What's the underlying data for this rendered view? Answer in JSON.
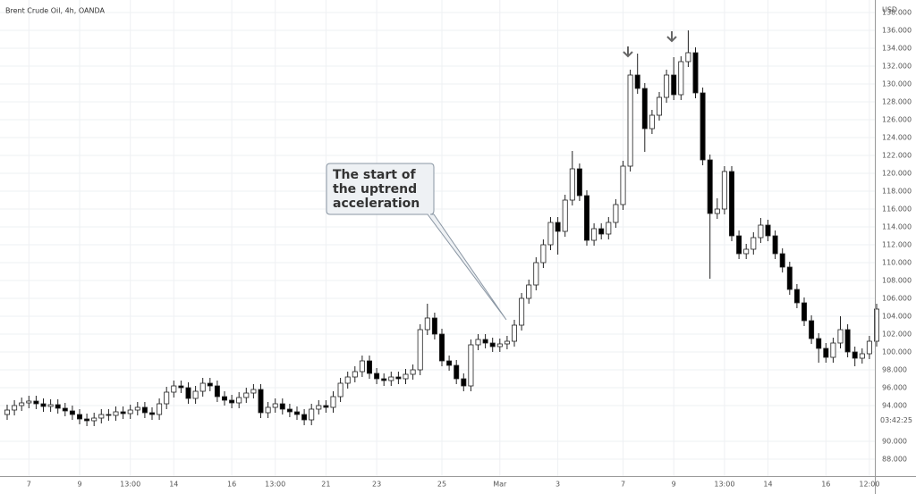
{
  "chart_data": {
    "type": "candlestick",
    "title": "Brent Crude Oil, 4h, OANDA",
    "y_axis_label": "USD",
    "countdown": "03:42:25",
    "annotation": [
      "The start of",
      "the uptrend",
      "acceleration"
    ],
    "up_color": "#ffffff",
    "down_color": "#000000",
    "outline_color": "#222222",
    "grid": true,
    "ylim": [
      86.1,
      139.4
    ],
    "yticks": [
      {
        "value": 88,
        "label": "88.000"
      },
      {
        "value": 90,
        "label": "90.000"
      },
      {
        "value": 94,
        "label": "94.000"
      },
      {
        "value": 96,
        "label": "96.000"
      },
      {
        "value": 98,
        "label": "98.000"
      },
      {
        "value": 100,
        "label": "100.000"
      },
      {
        "value": 102,
        "label": "102.000"
      },
      {
        "value": 104,
        "label": "104.000"
      },
      {
        "value": 106,
        "label": "106.000"
      },
      {
        "value": 108,
        "label": "108.000"
      },
      {
        "value": 110,
        "label": "110.000"
      },
      {
        "value": 112,
        "label": "112.000"
      },
      {
        "value": 114,
        "label": "114.000"
      },
      {
        "value": 116,
        "label": "116.000"
      },
      {
        "value": 118,
        "label": "118.000"
      },
      {
        "value": 120,
        "label": "120.000"
      },
      {
        "value": 122,
        "label": "122.000"
      },
      {
        "value": 124,
        "label": "124.000"
      },
      {
        "value": 126,
        "label": "126.000"
      },
      {
        "value": 128,
        "label": "128.000"
      },
      {
        "value": 130,
        "label": "130.000"
      },
      {
        "value": 132,
        "label": "132.000"
      },
      {
        "value": 134,
        "label": "134.000"
      },
      {
        "value": 136,
        "label": "136.000"
      },
      {
        "value": 138,
        "label": "138.000"
      }
    ],
    "categories": [
      null,
      null,
      null,
      "7",
      null,
      null,
      null,
      null,
      null,
      null,
      "9",
      null,
      null,
      null,
      null,
      null,
      null,
      "13:00",
      null,
      null,
      null,
      null,
      null,
      "14",
      null,
      null,
      null,
      null,
      null,
      null,
      null,
      "16",
      null,
      null,
      null,
      null,
      null,
      "13:00",
      null,
      null,
      null,
      null,
      null,
      null,
      "21",
      null,
      null,
      null,
      null,
      null,
      null,
      "23",
      null,
      null,
      null,
      null,
      null,
      null,
      null,
      null,
      "25",
      null,
      null,
      null,
      null,
      null,
      null,
      null,
      "Mar",
      null,
      null,
      null,
      null,
      null,
      null,
      null,
      "3",
      null,
      null,
      null,
      null,
      null,
      null,
      null,
      null,
      "7",
      null,
      null,
      null,
      null,
      null,
      null,
      "9",
      null,
      null,
      null,
      null,
      null,
      null,
      "13:00",
      null,
      null,
      null,
      null,
      null,
      "14",
      null,
      null,
      null,
      null,
      null,
      null,
      null,
      "16",
      null,
      null,
      null,
      null,
      null,
      "12:00",
      null
    ],
    "open": [
      93.0,
      93.5,
      94.0,
      94.3,
      94.5,
      94.2,
      93.9,
      94.1,
      93.7,
      93.4,
      93.0,
      92.5,
      92.3,
      92.6,
      93.0,
      92.9,
      93.3,
      93.1,
      93.5,
      93.8,
      93.2,
      93.0,
      94.2,
      95.5,
      96.2,
      96.0,
      94.8,
      95.6,
      96.5,
      96.2,
      95.0,
      94.6,
      94.3,
      94.9,
      95.4,
      95.8,
      93.2,
      93.8,
      94.2,
      93.6,
      93.3,
      93.0,
      92.4,
      93.6,
      94.0,
      93.8,
      95.0,
      96.5,
      97.2,
      97.8,
      99.0,
      97.6,
      97.0,
      96.8,
      97.2,
      97.0,
      97.5,
      98.0,
      102.5,
      103.8,
      102.0,
      99.0,
      98.5,
      97.0,
      96.2,
      100.8,
      101.4,
      101.0,
      100.6,
      100.9,
      101.2,
      103.0,
      106.0,
      107.5,
      110.0,
      112.0,
      114.5,
      113.5,
      117.0,
      120.5,
      117.5,
      112.5,
      113.8,
      113.2,
      114.5,
      116.5,
      120.8,
      131.0,
      129.5,
      125.0,
      126.5,
      128.5,
      131.0,
      128.8,
      132.5,
      133.5,
      129.0,
      121.5,
      115.5,
      116.0,
      120.2,
      113.0,
      111.0,
      111.5,
      112.8,
      114.2,
      113.0,
      111.0,
      109.5,
      107.0,
      105.5,
      103.5,
      101.5,
      100.4,
      99.4,
      101.0,
      102.5,
      100.0,
      99.3,
      99.8,
      101.2
    ],
    "high": [
      94.1,
      94.6,
      94.9,
      95.1,
      95.1,
      94.8,
      94.7,
      94.7,
      94.3,
      94.0,
      93.6,
      93.1,
      93.2,
      93.6,
      93.6,
      93.9,
      93.9,
      94.1,
      94.4,
      94.4,
      93.8,
      94.8,
      96.1,
      96.8,
      96.8,
      96.6,
      96.2,
      97.1,
      97.1,
      96.8,
      95.6,
      95.2,
      95.5,
      96.0,
      96.4,
      96.4,
      94.4,
      94.8,
      94.8,
      94.2,
      93.9,
      93.6,
      94.2,
      94.6,
      94.6,
      95.6,
      97.1,
      97.8,
      98.4,
      99.6,
      99.6,
      98.2,
      97.6,
      97.8,
      97.8,
      98.1,
      98.6,
      103.1,
      105.4,
      104.4,
      102.6,
      99.6,
      99.1,
      97.6,
      101.4,
      102.0,
      102.0,
      101.6,
      101.5,
      101.8,
      103.6,
      106.6,
      108.1,
      110.6,
      112.6,
      115.1,
      115.1,
      117.6,
      122.5,
      121.1,
      118.1,
      114.4,
      114.4,
      115.1,
      117.1,
      121.4,
      131.6,
      133.4,
      130.1,
      127.1,
      129.1,
      131.6,
      133.0,
      133.1,
      136.0,
      134.1,
      129.6,
      122.1,
      117.2,
      120.8,
      120.8,
      113.6,
      112.1,
      113.4,
      115.0,
      114.8,
      113.6,
      111.6,
      110.1,
      107.6,
      106.1,
      104.1,
      102.1,
      101.0,
      101.6,
      104.0,
      103.1,
      100.6,
      100.4,
      101.8,
      105.4
    ],
    "low": [
      92.4,
      92.9,
      93.4,
      93.7,
      93.6,
      93.3,
      93.3,
      93.1,
      92.8,
      92.4,
      91.9,
      91.7,
      91.7,
      92.0,
      92.3,
      92.3,
      92.5,
      92.5,
      92.9,
      92.6,
      92.4,
      92.4,
      93.6,
      94.9,
      95.4,
      94.2,
      94.2,
      95.0,
      95.6,
      94.4,
      94.0,
      93.7,
      93.7,
      94.3,
      94.8,
      92.6,
      92.6,
      93.2,
      93.0,
      92.7,
      92.4,
      91.8,
      91.8,
      93.0,
      93.2,
      93.2,
      94.4,
      95.9,
      96.6,
      97.2,
      97.0,
      96.4,
      96.2,
      96.2,
      96.4,
      96.4,
      96.9,
      97.4,
      101.9,
      101.4,
      98.4,
      97.9,
      96.4,
      95.6,
      95.6,
      100.2,
      100.4,
      100.0,
      100.0,
      100.3,
      100.6,
      102.4,
      105.4,
      106.9,
      109.4,
      111.4,
      110.9,
      112.9,
      116.4,
      116.9,
      111.9,
      111.9,
      112.6,
      112.6,
      113.9,
      115.9,
      120.2,
      128.9,
      122.4,
      124.4,
      125.9,
      127.9,
      128.2,
      128.2,
      131.9,
      128.4,
      120.9,
      108.2,
      114.9,
      115.4,
      112.4,
      110.4,
      110.4,
      110.9,
      112.2,
      112.4,
      110.4,
      108.9,
      106.4,
      104.9,
      102.9,
      100.9,
      98.8,
      98.8,
      98.8,
      100.4,
      99.4,
      98.4,
      98.7,
      99.2,
      100.6
    ],
    "close": [
      93.5,
      94.0,
      94.3,
      94.5,
      94.2,
      93.9,
      94.1,
      93.7,
      93.4,
      93.0,
      92.5,
      92.3,
      92.6,
      93.0,
      92.9,
      93.3,
      93.1,
      93.5,
      93.8,
      93.2,
      93.0,
      94.2,
      95.5,
      96.2,
      96.0,
      94.8,
      95.6,
      96.5,
      96.2,
      95.0,
      94.6,
      94.3,
      94.9,
      95.4,
      95.8,
      93.2,
      93.8,
      94.2,
      93.6,
      93.3,
      93.0,
      92.4,
      93.6,
      94.0,
      93.8,
      95.0,
      96.5,
      97.2,
      97.8,
      99.0,
      97.6,
      97.0,
      96.8,
      97.2,
      97.0,
      97.5,
      98.0,
      102.5,
      103.8,
      102.0,
      99.0,
      98.5,
      97.0,
      96.2,
      100.8,
      101.4,
      101.0,
      100.6,
      100.9,
      101.2,
      103.0,
      106.0,
      107.5,
      110.0,
      112.0,
      114.5,
      113.5,
      117.0,
      120.5,
      117.5,
      112.5,
      113.8,
      113.2,
      114.5,
      116.5,
      120.8,
      131.0,
      129.5,
      125.0,
      126.5,
      128.5,
      131.0,
      128.8,
      132.5,
      133.5,
      129.0,
      121.5,
      115.5,
      116.0,
      120.2,
      113.0,
      111.0,
      111.5,
      112.8,
      114.2,
      113.0,
      111.0,
      109.5,
      107.0,
      105.5,
      103.5,
      101.5,
      100.4,
      99.4,
      101.0,
      102.5,
      100.0,
      99.3,
      99.8,
      101.2,
      104.8
    ]
  }
}
